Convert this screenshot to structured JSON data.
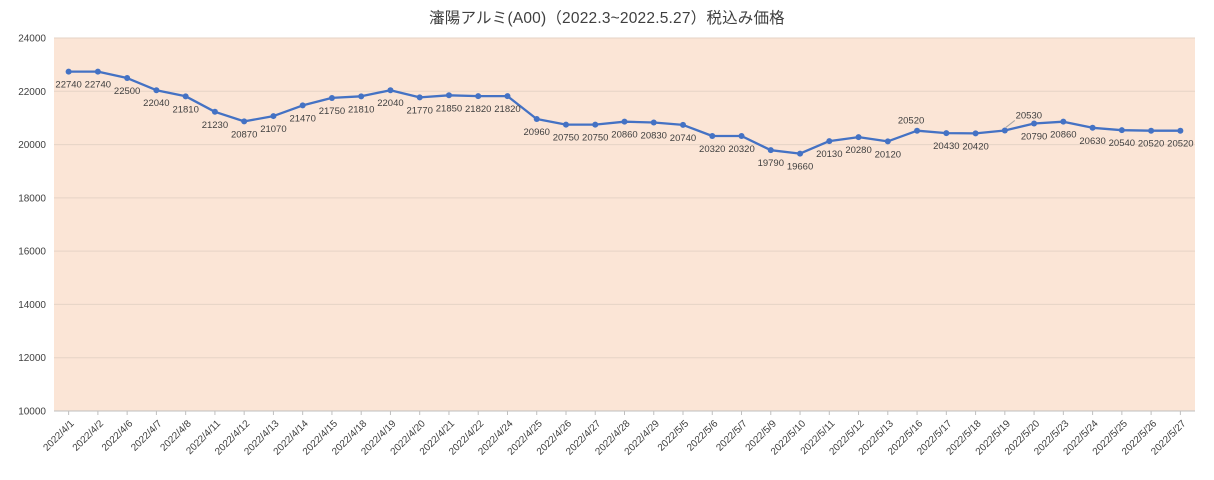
{
  "chart_data": {
    "type": "line",
    "title": "瀋陽アルミ(A00)（2022.3~2022.5.27）税込み価格",
    "categories": [
      "2022/4/1",
      "2022/4/2",
      "2022/4/6",
      "2022/4/7",
      "2022/4/8",
      "2022/4/11",
      "2022/4/12",
      "2022/4/13",
      "2022/4/14",
      "2022/4/15",
      "2022/4/18",
      "2022/4/19",
      "2022/4/20",
      "2022/4/21",
      "2022/4/22",
      "2022/4/24",
      "2022/4/25",
      "2022/4/26",
      "2022/4/27",
      "2022/4/28",
      "2022/4/29",
      "2022/5/5",
      "2022/5/6",
      "2022/5/7",
      "2022/5/9",
      "2022/5/10",
      "2022/5/11",
      "2022/5/12",
      "2022/5/13",
      "2022/5/16",
      "2022/5/17",
      "2022/5/18",
      "2022/5/19",
      "2022/5/20",
      "2022/5/23",
      "2022/5/24",
      "2022/5/25",
      "2022/5/26",
      "2022/5/27"
    ],
    "values": [
      22740,
      22740,
      22500,
      22040,
      21810,
      21230,
      20870,
      21070,
      21470,
      21750,
      21810,
      22040,
      21770,
      21850,
      21820,
      21820,
      20960,
      20750,
      20750,
      20860,
      20830,
      20740,
      20320,
      20320,
      19790,
      19660,
      20130,
      20280,
      20120,
      20520,
      20430,
      20420,
      20530,
      20790,
      20860,
      20630,
      20540,
      20520,
      20520
    ],
    "ylim": [
      10000,
      24000
    ],
    "ytick_labels": [
      "24000",
      "22000",
      "20000",
      "18000",
      "16000",
      "14000",
      "12000",
      "10000"
    ],
    "grid": true,
    "legend": "none",
    "data_labels": "all",
    "label_overrides": {
      "29": {
        "position": "above"
      },
      "32": {
        "position": "above-right",
        "leader": true
      }
    },
    "colors": {
      "series": "#4472c4",
      "plot_area_bg": "#fbe5d6",
      "gridline": "#e6d3c6",
      "axis": "#bfbfbf",
      "text": "#404040",
      "leader_line": "#a6a6a6"
    }
  }
}
